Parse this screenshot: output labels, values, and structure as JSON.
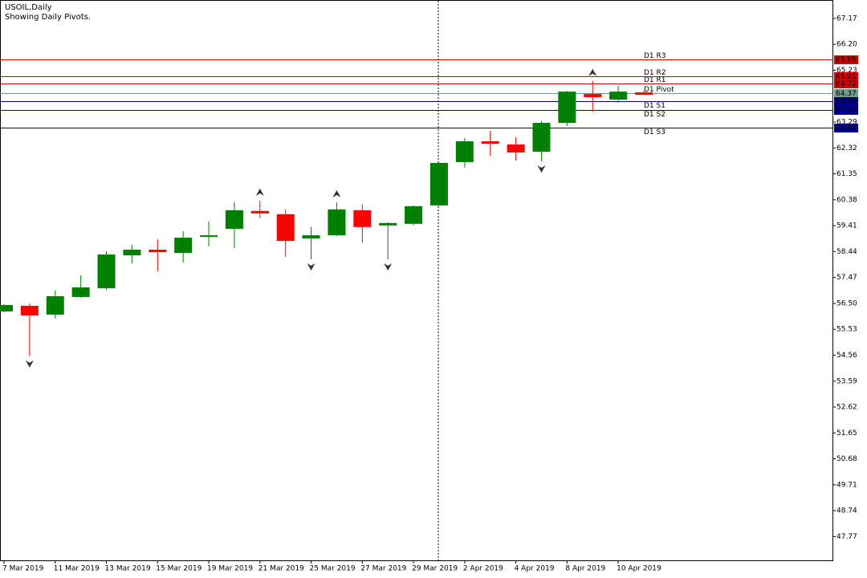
{
  "header": {
    "symbol": "USOIL,Daily",
    "note": "Showing Daily Pivots."
  },
  "chart_data": {
    "type": "candlestick",
    "categories": [
      "7 Mar 2019",
      null,
      "11 Mar 2019",
      null,
      "13 Mar 2019",
      null,
      "15 Mar 2019",
      null,
      "19 Mar 2019",
      null,
      "21 Mar 2019",
      null,
      "25 Mar 2019",
      null,
      "27 Mar 2019",
      null,
      "29 Mar 2019",
      null,
      "2 Apr 2019",
      null,
      "4 Apr 2019",
      null,
      "8 Apr 2019",
      null,
      "10 Apr 2019",
      null
    ],
    "open": [
      56.2,
      56.41,
      56.08,
      56.74,
      57.07,
      58.3,
      58.51,
      58.39,
      58.99,
      59.29,
      59.96,
      59.84,
      58.93,
      59.05,
      59.99,
      59.42,
      59.48,
      60.17,
      61.79,
      62.57,
      62.45,
      62.18,
      63.26,
      64.34,
      64.13,
      64.4
    ],
    "high": [
      56.47,
      56.5,
      56.98,
      57.55,
      58.45,
      58.69,
      58.9,
      59.2,
      59.57,
      60.29,
      60.35,
      60.02,
      59.36,
      60.29,
      60.2,
      59.54,
      60.17,
      61.77,
      62.69,
      62.96,
      62.72,
      63.32,
      64.46,
      64.83,
      64.65,
      64.46
    ],
    "low": [
      56.17,
      54.52,
      55.93,
      56.71,
      57.01,
      58.0,
      57.7,
      58.03,
      58.63,
      58.57,
      59.69,
      58.24,
      58.15,
      59.02,
      58.78,
      58.15,
      59.42,
      60.14,
      61.58,
      62.03,
      61.85,
      61.82,
      63.14,
      63.68,
      64.01,
      64.31
    ],
    "close": [
      56.44,
      56.05,
      56.77,
      57.1,
      58.33,
      58.51,
      58.42,
      58.96,
      59.05,
      59.99,
      59.87,
      58.84,
      59.05,
      60.02,
      59.36,
      59.51,
      60.14,
      61.76,
      62.57,
      62.48,
      62.15,
      63.26,
      64.43,
      64.22,
      64.43,
      64.31
    ],
    "up_color": "#008000",
    "down_color": "#ff0000",
    "fractals_up": [
      null,
      null,
      null,
      null,
      null,
      null,
      null,
      null,
      null,
      null,
      60.35,
      null,
      null,
      60.29,
      null,
      null,
      null,
      null,
      null,
      null,
      null,
      null,
      null,
      64.83,
      null,
      null
    ],
    "fractals_down": [
      null,
      54.52,
      null,
      null,
      null,
      null,
      null,
      null,
      null,
      null,
      null,
      null,
      58.15,
      null,
      null,
      58.15,
      null,
      null,
      null,
      null,
      null,
      61.82,
      null,
      null,
      null,
      null
    ],
    "pivots": [
      {
        "name": "D1 R3",
        "value": 65.65,
        "color": "#d40000"
      },
      {
        "name": "D1 R2",
        "value": 65.01,
        "color": "#d40000"
      },
      {
        "name": "D1 R1",
        "value": 64.72,
        "color": "#d40000"
      },
      {
        "name": "D1 Pivot",
        "value": 64.37,
        "color": "#6f9c8c"
      },
      {
        "name": "D1 S1",
        "value": 64.08,
        "color": "#00008b"
      },
      {
        "name": "D1 S2",
        "value": 63.73,
        "color": "#00008b"
      },
      {
        "name": "D1 S3",
        "value": 63.09,
        "color": "#00008b"
      }
    ],
    "ylim": [
      46.88,
      67.86
    ],
    "yticks": [
      67.17,
      {
        "value": 66.2,
        "label": "66.20"
      },
      65.23,
      63.29,
      62.32,
      61.35,
      60.38,
      59.41,
      58.44,
      57.47,
      {
        "value": 56.5,
        "label": "56.50"
      },
      55.53,
      54.56,
      53.59,
      52.62,
      51.65,
      50.68,
      49.71,
      48.74,
      47.77
    ]
  }
}
